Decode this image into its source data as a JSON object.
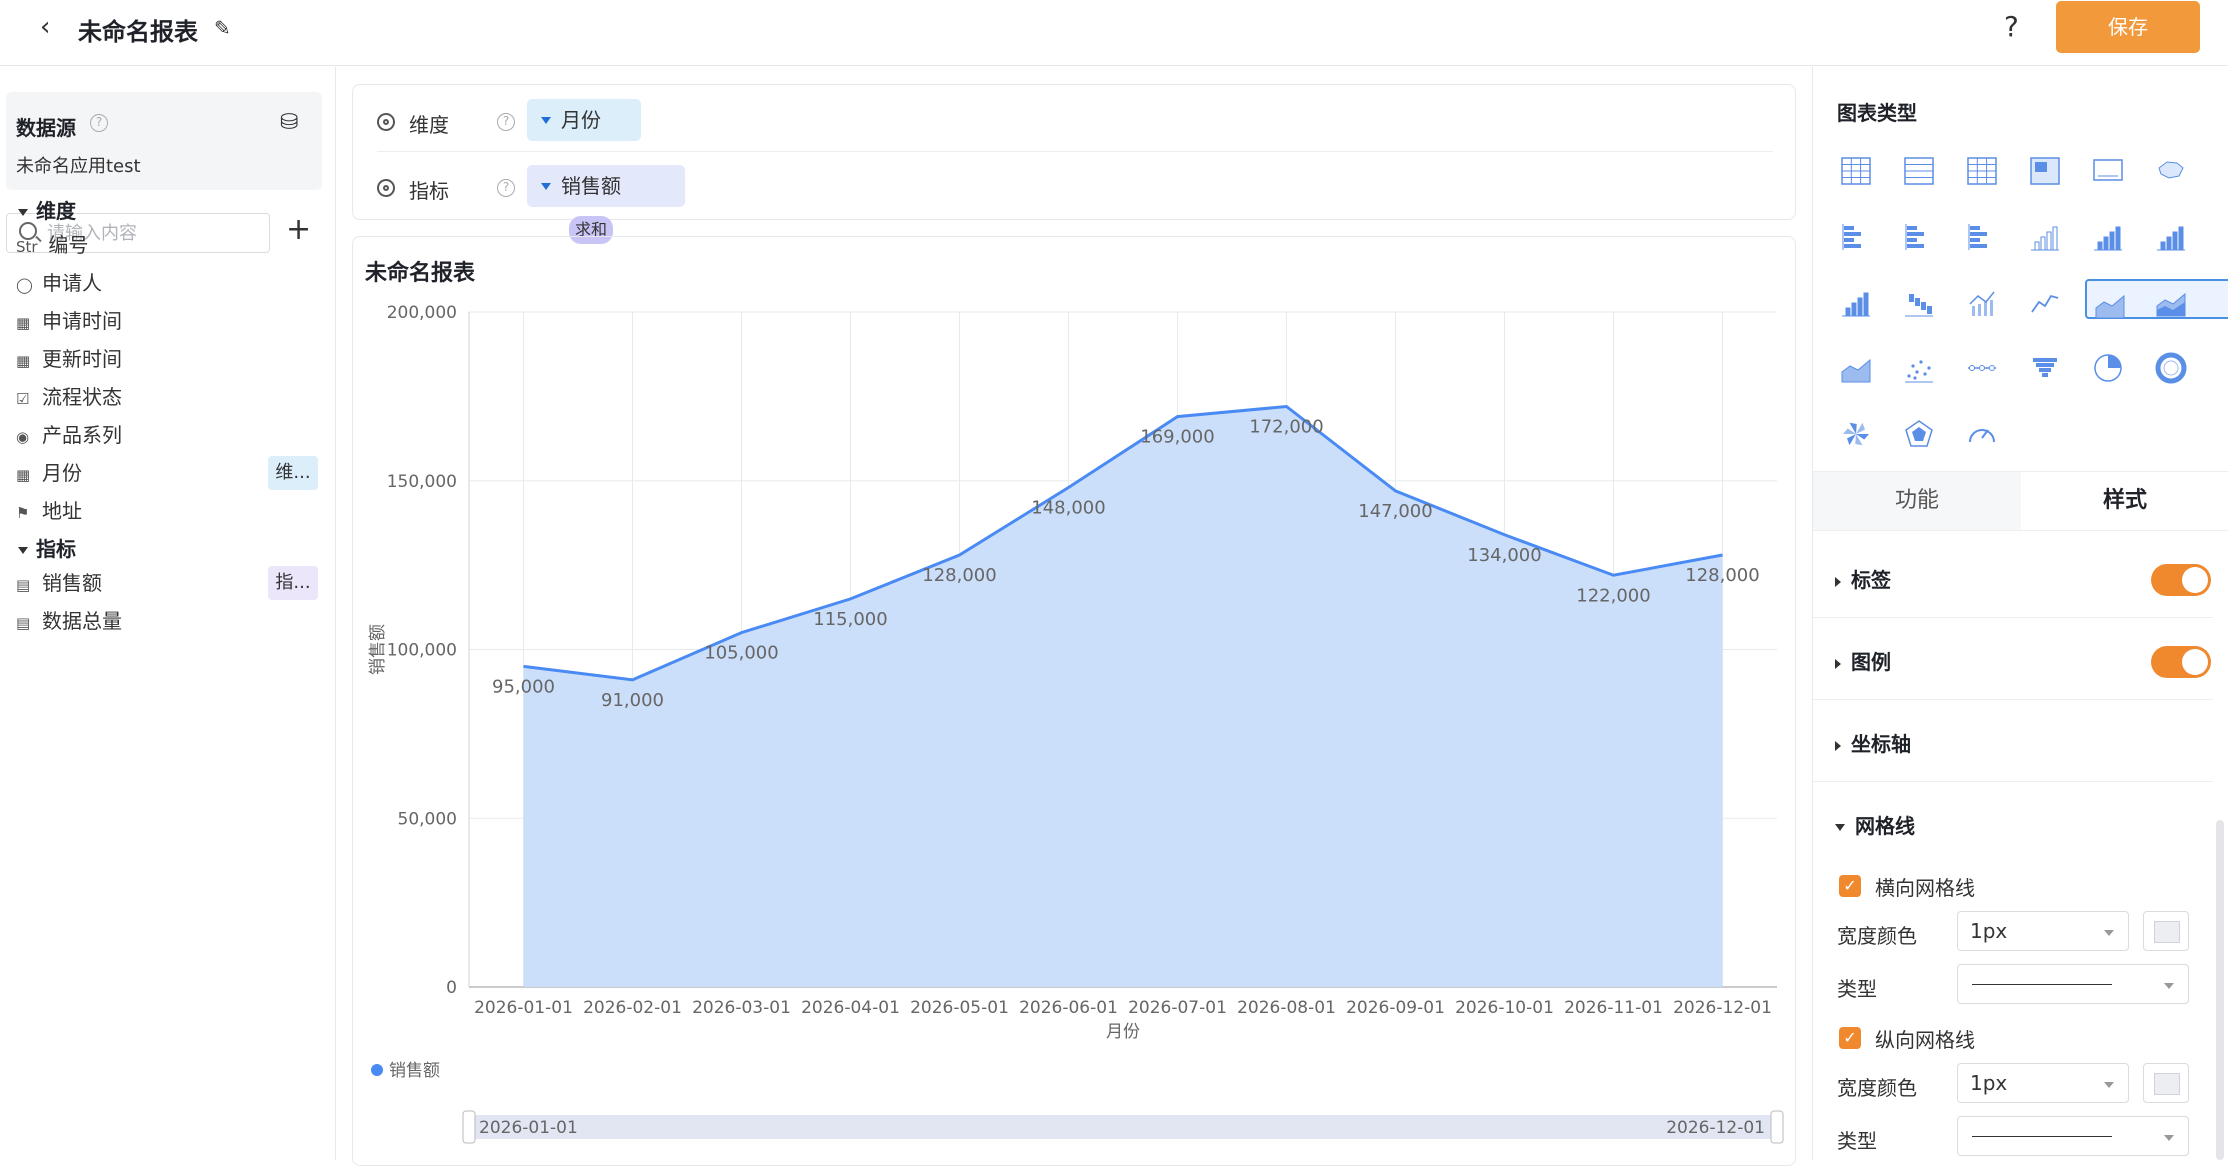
{
  "header": {
    "title": "未命名报表",
    "help_label": "?",
    "save_label": "保存"
  },
  "sidebar": {
    "datasource_title": "数据源",
    "datasource_name": "未命名应用test",
    "search_placeholder": "请输入内容",
    "dimension_section": "维度",
    "measure_section": "指标",
    "dimensions": [
      {
        "icon": "str-icon",
        "prefix": "Str",
        "label": "编号",
        "tag": ""
      },
      {
        "icon": "user-icon",
        "prefix": "",
        "label": "申请人",
        "tag": ""
      },
      {
        "icon": "calendar-icon",
        "prefix": "",
        "label": "申请时间",
        "tag": ""
      },
      {
        "icon": "calendar-icon",
        "prefix": "",
        "label": "更新时间",
        "tag": ""
      },
      {
        "icon": "checkbox-icon",
        "prefix": "",
        "label": "流程状态",
        "tag": ""
      },
      {
        "icon": "radio-icon",
        "prefix": "",
        "label": "产品系列",
        "tag": ""
      },
      {
        "icon": "calendar-icon",
        "prefix": "",
        "label": "月份",
        "tag": "维..."
      },
      {
        "icon": "location-icon",
        "prefix": "",
        "label": "地址",
        "tag": ""
      }
    ],
    "measures": [
      {
        "icon": "number-icon",
        "label": "销售额",
        "tag": "指..."
      },
      {
        "icon": "number-icon",
        "label": "数据总量",
        "tag": ""
      }
    ]
  },
  "config": {
    "dimension_label": "维度",
    "dimension_value": "月份",
    "measure_label": "指标",
    "measure_value": "销售额",
    "measure_agg": "求和"
  },
  "chart_panel": {
    "title": "未命名报表",
    "legend_item": "销售额",
    "slider_start": "2026-01-01",
    "slider_end": "2026-12-01"
  },
  "chart_data": {
    "type": "area",
    "title": "未命名报表",
    "xlabel": "月份",
    "ylabel": "销售额",
    "ylim": [
      0,
      200000
    ],
    "yticks": [
      "0",
      "50,000",
      "100,000",
      "150,000",
      "200,000"
    ],
    "categories": [
      "2026-01-01",
      "2026-02-01",
      "2026-03-01",
      "2026-04-01",
      "2026-05-01",
      "2026-06-01",
      "2026-07-01",
      "2026-08-01",
      "2026-09-01",
      "2026-10-01",
      "2026-11-01",
      "2026-12-01"
    ],
    "series": [
      {
        "name": "销售额",
        "values": [
          95000,
          91000,
          105000,
          115000,
          128000,
          148000,
          169000,
          172000,
          147000,
          134000,
          122000,
          128000
        ]
      }
    ],
    "data_labels": [
      "95,000",
      "91,000",
      "105,000",
      "115,000",
      "128,000",
      "148,000",
      "169,000",
      "172,000",
      "147,000",
      "134,000",
      "122,000",
      "128,000"
    ],
    "grid": true,
    "legend": "bottom-left",
    "colors": {
      "line": "#4a8af4",
      "fill": "#c9ddfa"
    }
  },
  "settings": {
    "chart_type_title": "图表类型",
    "tab_function": "功能",
    "tab_style": "样式",
    "label_section": "标签",
    "legend_section": "图例",
    "axis_section": "坐标轴",
    "grid_section": "网格线",
    "h_grid_label": "横向网格线",
    "v_grid_label": "纵向网格线",
    "width_color_label": "宽度颜色",
    "type_label": "类型",
    "h_width_value": "1px",
    "v_width_value": "1px",
    "accent": "#f29a3b"
  }
}
